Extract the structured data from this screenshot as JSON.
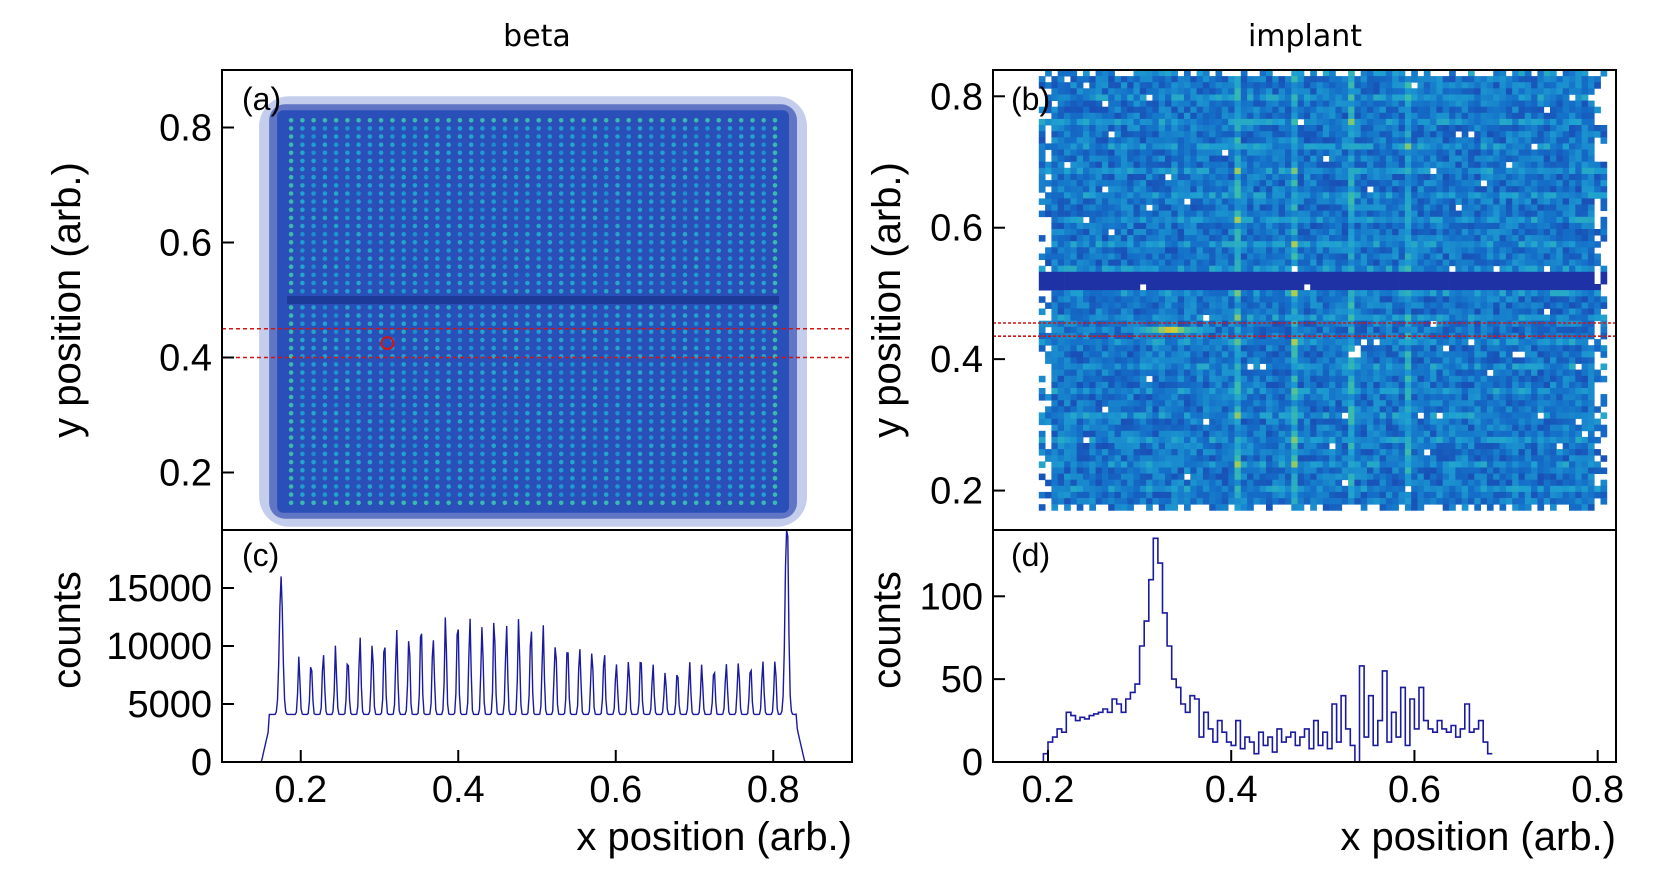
{
  "chart_data": [
    {
      "panel": "a",
      "type": "heatmap",
      "label": "(a)",
      "title": "beta",
      "xlabel": "",
      "ylabel": "y position (arb.)",
      "xlim": [
        0.1,
        0.9
      ],
      "ylim": [
        0.1,
        0.9
      ],
      "yticks": [
        "0.2",
        "0.4",
        "0.6",
        "0.8"
      ],
      "coverage": {
        "x": [
          0.17,
          0.82
        ],
        "y": [
          0.13,
          0.83
        ]
      },
      "gap_y": 0.5,
      "selection_band": {
        "y": [
          0.4,
          0.45
        ],
        "color": "#d21414"
      },
      "marker": {
        "x": 0.31,
        "y": 0.425,
        "shape": "circle",
        "color": "#d21414"
      }
    },
    {
      "panel": "b",
      "type": "heatmap",
      "label": "(b)",
      "title": "implant",
      "xlabel": "",
      "ylabel": "y position (arb.)",
      "xlim": [
        0.14,
        0.82
      ],
      "ylim": [
        0.14,
        0.84
      ],
      "yticks": [
        "0.2",
        "0.4",
        "0.6",
        "0.8"
      ],
      "coverage": {
        "x": [
          0.19,
          0.81
        ],
        "y": [
          0.17,
          0.84
        ]
      },
      "gap_y": 0.52,
      "selection_band": {
        "y": [
          0.435,
          0.455
        ],
        "color": "#d21414"
      },
      "hotspot": {
        "x": 0.33,
        "y": 0.445
      }
    },
    {
      "panel": "c",
      "type": "line",
      "label": "(c)",
      "title": "",
      "xlabel": "x position (arb.)",
      "ylabel": "counts",
      "xlim": [
        0.1,
        0.9
      ],
      "ylim": [
        0,
        20000
      ],
      "xticks": [
        "0.2",
        "0.4",
        "0.6",
        "0.8"
      ],
      "yticks": [
        "0",
        "5000",
        "10000",
        "15000"
      ],
      "series": [
        {
          "description": "periodic peaks",
          "x_start": 0.1,
          "x_rise": 0.16,
          "x_fall": 0.83,
          "x_end": 0.9,
          "edge_peaks": [
            {
              "x": 0.175,
              "y": 16000
            },
            {
              "x": 0.817,
              "y": 19000
            }
          ],
          "peak_period": 0.0155,
          "baseline": 4100,
          "peak_envelope": [
            {
              "x": 0.19,
              "y": 8500
            },
            {
              "x": 0.3,
              "y": 10500
            },
            {
              "x": 0.44,
              "y": 12800
            },
            {
              "x": 0.55,
              "y": 10000
            },
            {
              "x": 0.68,
              "y": 8000
            },
            {
              "x": 0.8,
              "y": 9000
            }
          ],
          "color": "#1a1aa0"
        }
      ]
    },
    {
      "panel": "d",
      "type": "line",
      "label": "(d)",
      "title": "",
      "xlabel": "x position (arb.)",
      "ylabel": "counts",
      "xlim": [
        0.14,
        0.82
      ],
      "ylim": [
        0,
        140
      ],
      "xticks": [
        "0.2",
        "0.4",
        "0.6",
        "0.8"
      ],
      "yticks": [
        "0",
        "50",
        "100"
      ],
      "series": [
        {
          "bin_start": 0.19,
          "bin_width": 0.005,
          "values": [
            0,
            5,
            12,
            15,
            20,
            18,
            30,
            28,
            25,
            27,
            26,
            28,
            29,
            30,
            32,
            30,
            38,
            35,
            30,
            38,
            42,
            47,
            70,
            85,
            110,
            135,
            120,
            90,
            70,
            50,
            45,
            35,
            30,
            40,
            38,
            15,
            30,
            20,
            12,
            25,
            18,
            12,
            10,
            25,
            8,
            15,
            12,
            5,
            18,
            10,
            15,
            6,
            20,
            12,
            15,
            18,
            10,
            15,
            20,
            8,
            25,
            10,
            18,
            8,
            35,
            12,
            40,
            20,
            10,
            0,
            58,
            15,
            40,
            10,
            25,
            55,
            12,
            30,
            15,
            45,
            10,
            38,
            20,
            45,
            25,
            20,
            18,
            25,
            20,
            18,
            22,
            15,
            20,
            35,
            18,
            20,
            25,
            12,
            5
          ],
          "color": "#1a1aa0"
        }
      ]
    }
  ]
}
